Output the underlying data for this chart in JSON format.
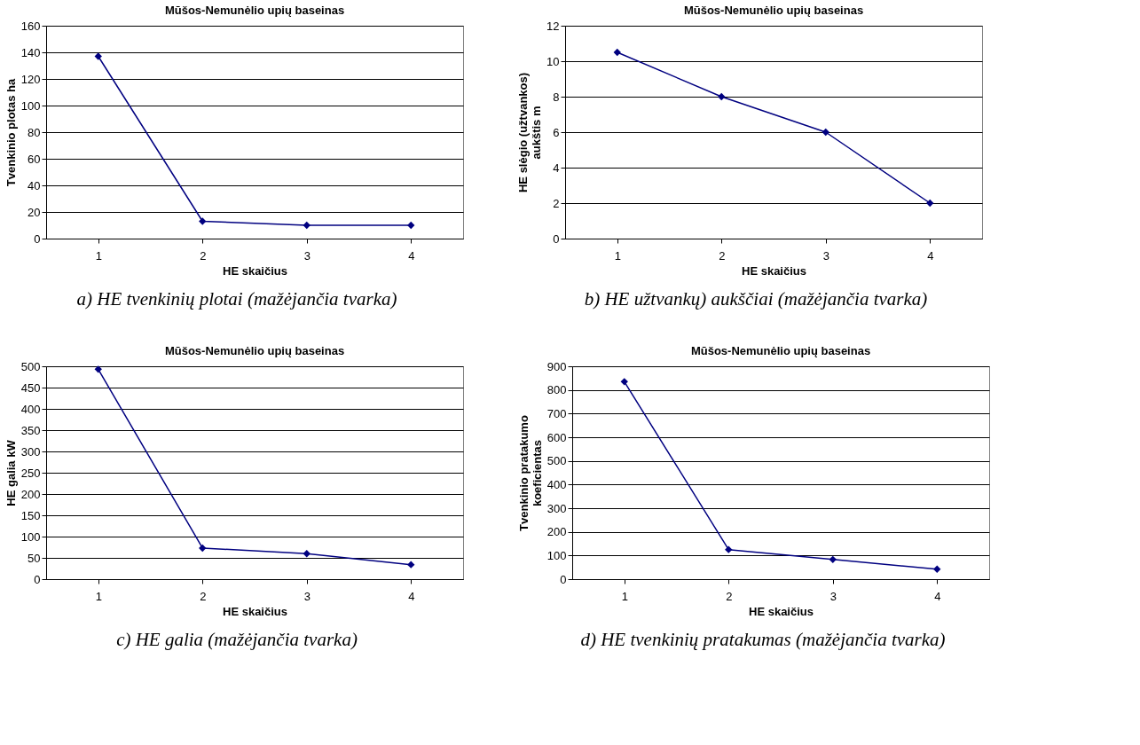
{
  "chart_data": [
    {
      "type": "line",
      "title": "Mūšos-Nemunėlio upių baseinas",
      "xlabel": "HE skaičius",
      "ylabel": "Tvenkinio plotas ha",
      "categories": [
        "1",
        "2",
        "3",
        "4"
      ],
      "series": [
        {
          "color": "#000080",
          "values": [
            137,
            13,
            10,
            10
          ]
        }
      ],
      "ylim": [
        0,
        160
      ],
      "yticks": [
        0,
        20,
        40,
        60,
        80,
        100,
        120,
        140,
        160
      ],
      "grid": "y",
      "marker": "diamond",
      "annotations": [
        "a) HE tvenkinių plotai (mažėjančia tvarka)"
      ]
    },
    {
      "type": "line",
      "title": "Mūšos-Nemunėlio upių baseinas",
      "xlabel": "HE skaičius",
      "ylabel": "HE slėgio (užtvankos)\naukštis m",
      "categories": [
        "1",
        "2",
        "3",
        "4"
      ],
      "series": [
        {
          "color": "#000080",
          "values": [
            10.5,
            8,
            6,
            2
          ]
        }
      ],
      "ylim": [
        0,
        12
      ],
      "yticks": [
        0,
        2,
        4,
        6,
        8,
        10,
        12
      ],
      "grid": "y",
      "marker": "diamond",
      "annotations": [
        "b) HE užtvankų) aukščiai (mažėjančia tvarka)"
      ]
    },
    {
      "type": "line",
      "title": "Mūšos-Nemunėlio upių baseinas",
      "xlabel": "HE skaičius",
      "ylabel": "HE galia kW",
      "categories": [
        "1",
        "2",
        "3",
        "4"
      ],
      "series": [
        {
          "color": "#000080",
          "values": [
            493,
            73,
            60,
            34
          ]
        }
      ],
      "ylim": [
        0,
        500
      ],
      "yticks": [
        0,
        50,
        100,
        150,
        200,
        250,
        300,
        350,
        400,
        450,
        500
      ],
      "grid": "y",
      "marker": "diamond",
      "annotations": [
        "c) HE galia (mažėjančia tvarka)"
      ]
    },
    {
      "type": "line",
      "title": "Mūšos-Nemunėlio upių baseinas",
      "xlabel": "HE skaičius",
      "ylabel": "Tvenkinio pratakumo\nkoeficientas",
      "categories": [
        "1",
        "2",
        "3",
        "4"
      ],
      "series": [
        {
          "color": "#000080",
          "values": [
            835,
            125,
            83,
            42
          ]
        }
      ],
      "ylim": [
        0,
        900
      ],
      "yticks": [
        0,
        100,
        200,
        300,
        400,
        500,
        600,
        700,
        800,
        900
      ],
      "grid": "y",
      "marker": "diamond",
      "annotations": [
        "d) HE tvenkinių pratakumas  (mažėjančia tvarka)"
      ]
    }
  ]
}
